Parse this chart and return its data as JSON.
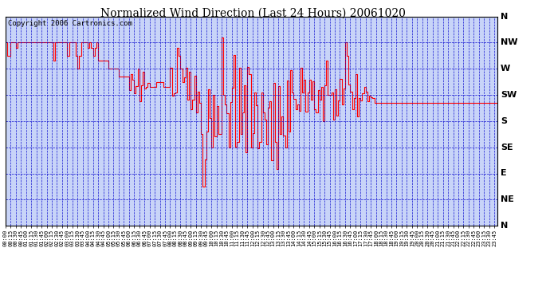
{
  "title": "Normalized Wind Direction (Last 24 Hours) 20061020",
  "copyright": "Copyright 2006 Cartronics.com",
  "bg_color": "#ffffff",
  "plot_bg_color": "#c8d4f8",
  "line_color": "#ff0000",
  "grid_color": "#0000cc",
  "y_labels": [
    "N",
    "NW",
    "W",
    "SW",
    "S",
    "SE",
    "E",
    "NE",
    "N"
  ],
  "y_values": [
    8,
    7,
    6,
    5,
    4,
    3,
    2,
    1,
    0
  ],
  "ylim": [
    0,
    8
  ],
  "title_fontsize": 10,
  "copyright_fontsize": 6.5,
  "ylabel_fontsize": 8,
  "xlabel_fontsize": 5
}
